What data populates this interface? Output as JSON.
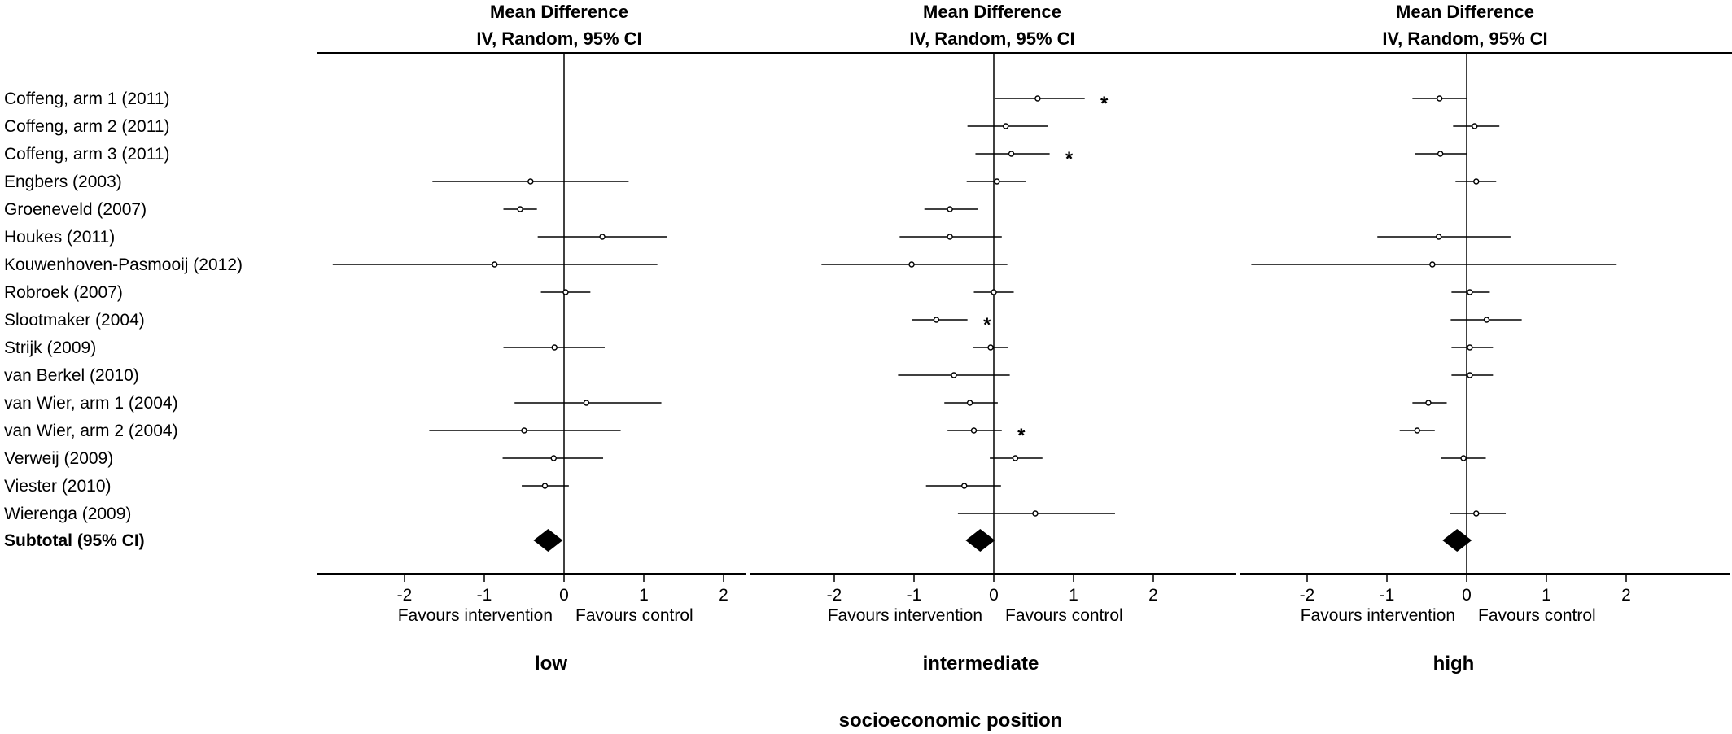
{
  "chart_data": {
    "type": "forest",
    "measure_header_line1": "Mean Difference",
    "measure_header_line2": "IV, Random, 95% CI",
    "x_ticks": [
      -2,
      -1,
      0,
      1,
      2
    ],
    "x_tick_labels": [
      "-2",
      "-1",
      "0",
      "1",
      "2"
    ],
    "favours_left": "Favours intervention",
    "favours_right": "Favours control",
    "xlabel": "socioeconomic position",
    "studies": [
      "Coffeng, arm 1 (2011)",
      "Coffeng, arm 2 (2011)",
      "Coffeng, arm 3 (2011)",
      "Engbers (2003)",
      "Groeneveld (2007)",
      "Houkes (2011)",
      "Kouwenhoven-Pasmooij (2012)",
      "Robroek (2007)",
      "Slootmaker (2004)",
      "Strijk (2009)",
      "van Berkel (2010)",
      "van Wier, arm 1 (2004)",
      "van Wier, arm 2 (2004)",
      "Verweij (2009)",
      "Viester (2010)",
      "Wierenga (2009)"
    ],
    "subtotal_label": "Subtotal (95% CI)",
    "panels": [
      {
        "name": "low",
        "estimates": [
          null,
          null,
          null,
          {
            "md": -0.42,
            "lo": -1.65,
            "hi": 0.81,
            "star": false
          },
          {
            "md": -0.55,
            "lo": -0.76,
            "hi": -0.34,
            "star": false
          },
          {
            "md": 0.48,
            "lo": -0.33,
            "hi": 1.29,
            "star": false
          },
          {
            "md": -0.87,
            "lo": -2.9,
            "hi": 1.17,
            "star": false
          },
          {
            "md": 0.02,
            "lo": -0.29,
            "hi": 0.33,
            "star": false
          },
          null,
          {
            "md": -0.12,
            "lo": -0.76,
            "hi": 0.51,
            "star": false
          },
          null,
          {
            "md": 0.28,
            "lo": -0.62,
            "hi": 1.22,
            "star": false
          },
          {
            "md": -0.5,
            "lo": -1.69,
            "hi": 0.71,
            "star": false
          },
          {
            "md": -0.13,
            "lo": -0.77,
            "hi": 0.49,
            "star": false
          },
          {
            "md": -0.24,
            "lo": -0.53,
            "hi": 0.06,
            "star": false
          },
          null
        ],
        "subtotal": -0.2
      },
      {
        "name": "intermediate",
        "estimates": [
          {
            "md": 0.55,
            "lo": 0.02,
            "hi": 1.14,
            "star": true
          },
          {
            "md": 0.15,
            "lo": -0.33,
            "hi": 0.68,
            "star": false
          },
          {
            "md": 0.22,
            "lo": -0.23,
            "hi": 0.7,
            "star": true
          },
          {
            "md": 0.04,
            "lo": -0.34,
            "hi": 0.4,
            "star": false
          },
          {
            "md": -0.55,
            "lo": -0.87,
            "hi": -0.2,
            "star": false
          },
          {
            "md": -0.55,
            "lo": -1.18,
            "hi": 0.1,
            "star": false
          },
          {
            "md": -1.03,
            "lo": -2.16,
            "hi": 0.17,
            "star": false
          },
          {
            "md": 0.0,
            "lo": -0.25,
            "hi": 0.25,
            "star": false
          },
          {
            "md": -0.72,
            "lo": -1.03,
            "hi": -0.33,
            "star": true
          },
          {
            "md": -0.04,
            "lo": -0.26,
            "hi": 0.18,
            "star": false
          },
          {
            "md": -0.5,
            "lo": -1.2,
            "hi": 0.2,
            "star": false
          },
          {
            "md": -0.3,
            "lo": -0.62,
            "hi": 0.05,
            "star": false
          },
          {
            "md": -0.25,
            "lo": -0.58,
            "hi": 0.1,
            "star": true
          },
          {
            "md": 0.27,
            "lo": -0.05,
            "hi": 0.61,
            "star": false
          },
          {
            "md": -0.37,
            "lo": -0.85,
            "hi": 0.09,
            "star": false
          },
          {
            "md": 0.52,
            "lo": -0.45,
            "hi": 1.52,
            "star": false
          }
        ],
        "subtotal": -0.17
      },
      {
        "name": "high",
        "estimates": [
          {
            "md": -0.34,
            "lo": -0.68,
            "hi": 0.0,
            "star": false
          },
          {
            "md": 0.1,
            "lo": -0.17,
            "hi": 0.41,
            "star": false
          },
          {
            "md": -0.33,
            "lo": -0.65,
            "hi": 0.0,
            "star": false
          },
          {
            "md": 0.12,
            "lo": -0.14,
            "hi": 0.37,
            "star": false
          },
          null,
          {
            "md": -0.35,
            "lo": -1.12,
            "hi": 0.55,
            "star": false
          },
          {
            "md": -0.43,
            "lo": -2.7,
            "hi": 1.88,
            "star": false
          },
          {
            "md": 0.04,
            "lo": -0.19,
            "hi": 0.29,
            "star": false
          },
          {
            "md": 0.25,
            "lo": -0.2,
            "hi": 0.69,
            "star": false
          },
          {
            "md": 0.04,
            "lo": -0.19,
            "hi": 0.33,
            "star": false
          },
          {
            "md": 0.04,
            "lo": -0.19,
            "hi": 0.33,
            "star": false
          },
          {
            "md": -0.48,
            "lo": -0.68,
            "hi": -0.25,
            "star": false
          },
          {
            "md": -0.62,
            "lo": -0.84,
            "hi": -0.4,
            "star": false
          },
          {
            "md": -0.04,
            "lo": -0.32,
            "hi": 0.24,
            "star": false
          },
          null,
          {
            "md": 0.12,
            "lo": -0.21,
            "hi": 0.49,
            "star": false
          }
        ],
        "subtotal": -0.12
      }
    ],
    "star_symbol": "*"
  }
}
